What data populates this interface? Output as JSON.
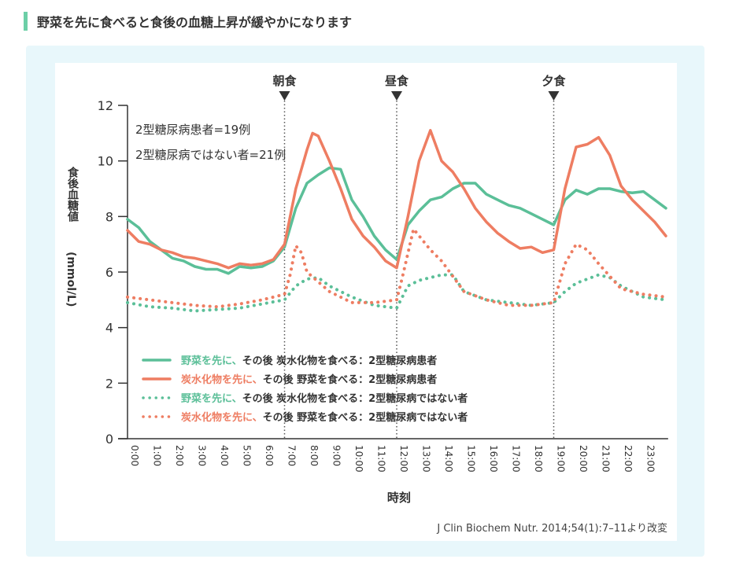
{
  "header": {
    "title": "野菜を先に食べると食後の血糖上昇が緩やかになります"
  },
  "annotation": {
    "line1": "2型糖尿病患者=19例",
    "line2": "2型糖尿病ではない者=21例"
  },
  "meals": [
    {
      "label": "朝食",
      "hour": 7
    },
    {
      "label": "昼食",
      "hour": 12
    },
    {
      "label": "夕食",
      "hour": 19
    }
  ],
  "source": "J Clin Biochem Nutr. 2014;54(1):7–11より改変",
  "chart_data": {
    "type": "line",
    "xlabel": "時刻",
    "ylabel": "食後血糖値",
    "yunit": "(mmol/L)",
    "ylim": [
      0,
      12
    ],
    "yticks": [
      0,
      2,
      4,
      6,
      8,
      10,
      12
    ],
    "xlim": [
      0,
      24.1
    ],
    "xticks": [
      "0:00",
      "1:00",
      "2:00",
      "3:00",
      "4:00",
      "5:00",
      "6:00",
      "7:00",
      "8:00",
      "9:00",
      "10:00",
      "11:00",
      "12:00",
      "13:00",
      "14:00",
      "15:00",
      "16:00",
      "17:00",
      "18:00",
      "19:00",
      "20:00",
      "21:00",
      "22:00",
      "23:00"
    ],
    "legend_position": "bottom-left",
    "series": [
      {
        "name_colored": "野菜を先に、",
        "name_rest": "その後 炭水化物を食べる：2型糖尿病患者",
        "color": "#5bbf98",
        "style": "solid",
        "x": [
          0,
          0.5,
          1,
          1.5,
          2,
          2.5,
          3,
          3.5,
          4,
          4.5,
          5,
          5.5,
          6,
          6.5,
          7,
          7.5,
          8,
          8.5,
          9,
          9.5,
          10,
          10.5,
          11,
          11.5,
          12,
          12.5,
          13,
          13.5,
          14,
          14.5,
          15,
          15.5,
          16,
          16.5,
          17,
          17.5,
          18,
          18.5,
          19,
          19.5,
          20,
          20.5,
          21,
          21.5,
          22,
          22.5,
          23,
          23.5,
          24
        ],
        "y": [
          7.9,
          7.6,
          7.1,
          6.8,
          6.5,
          6.4,
          6.2,
          6.1,
          6.1,
          5.95,
          6.2,
          6.15,
          6.2,
          6.4,
          6.9,
          8.3,
          9.2,
          9.5,
          9.75,
          9.7,
          8.6,
          8.0,
          7.3,
          6.8,
          6.45,
          7.7,
          8.2,
          8.6,
          8.7,
          9.0,
          9.2,
          9.2,
          8.8,
          8.6,
          8.4,
          8.3,
          8.1,
          7.9,
          7.7,
          8.6,
          8.95,
          8.8,
          9.0,
          9.0,
          8.9,
          8.85,
          8.9,
          8.6,
          8.3
        ]
      },
      {
        "name_colored": "炭水化物を先に、",
        "name_rest": "その後 野菜を食べる：2型糖尿病患者",
        "color": "#ee7d62",
        "style": "solid",
        "x": [
          0,
          0.5,
          1,
          1.5,
          2,
          2.5,
          3,
          3.5,
          4,
          4.5,
          5,
          5.5,
          6,
          6.5,
          7,
          7.5,
          8,
          8.25,
          8.5,
          9,
          9.5,
          10,
          10.5,
          11,
          11.5,
          12,
          12.5,
          13,
          13.5,
          14,
          14.5,
          15,
          15.5,
          16,
          16.5,
          17,
          17.5,
          18,
          18.5,
          19,
          19.5,
          20,
          20.5,
          21,
          21.5,
          22,
          22.5,
          23,
          23.5,
          24
        ],
        "y": [
          7.5,
          7.1,
          7.0,
          6.8,
          6.7,
          6.55,
          6.5,
          6.4,
          6.3,
          6.15,
          6.3,
          6.25,
          6.3,
          6.45,
          7.0,
          9.0,
          10.4,
          11.0,
          10.9,
          10.0,
          9.0,
          7.9,
          7.3,
          6.9,
          6.4,
          6.15,
          8.0,
          10.0,
          11.1,
          10.0,
          9.6,
          9.0,
          8.3,
          7.8,
          7.4,
          7.1,
          6.85,
          6.9,
          6.7,
          6.8,
          9.0,
          10.5,
          10.6,
          10.85,
          10.2,
          9.1,
          8.6,
          8.2,
          7.8,
          7.3
        ]
      },
      {
        "name_colored": "野菜を先に、",
        "name_rest": "その後 炭水化物を食べる：2型糖尿病ではない者",
        "color": "#5bbf98",
        "style": "dotted",
        "x": [
          0,
          1,
          2,
          3,
          4,
          5,
          6,
          7,
          7.5,
          8,
          8.5,
          9,
          10,
          11,
          12,
          12.5,
          13,
          14,
          14.5,
          15,
          16,
          17,
          18,
          19,
          19.5,
          20,
          21,
          21.5,
          22,
          23,
          24
        ],
        "y": [
          4.9,
          4.75,
          4.7,
          4.6,
          4.65,
          4.7,
          4.85,
          5.0,
          5.5,
          5.75,
          5.8,
          5.5,
          5.1,
          4.8,
          4.7,
          5.5,
          5.7,
          5.9,
          5.9,
          5.3,
          5.0,
          4.9,
          4.8,
          4.9,
          5.3,
          5.6,
          5.9,
          5.8,
          5.5,
          5.1,
          5.0
        ]
      },
      {
        "name_colored": "炭水化物を先に、",
        "name_rest": "その後 野菜を食べる：2型糖尿病ではない者",
        "color": "#ee7d62",
        "style": "dotted",
        "x": [
          0,
          1,
          2,
          3,
          4,
          5,
          6,
          7,
          7.25,
          7.5,
          7.75,
          8,
          9,
          10,
          11,
          12,
          12.25,
          12.75,
          13.5,
          14,
          15,
          16,
          17,
          18,
          19,
          19.5,
          20,
          20.5,
          21,
          22,
          23,
          24
        ],
        "y": [
          5.1,
          5.0,
          4.9,
          4.8,
          4.75,
          4.85,
          5.0,
          5.2,
          5.9,
          6.95,
          6.7,
          6.0,
          5.3,
          4.9,
          4.9,
          5.0,
          5.8,
          7.55,
          6.8,
          6.4,
          5.3,
          5.0,
          4.8,
          4.8,
          4.9,
          6.3,
          7.0,
          6.8,
          6.3,
          5.4,
          5.2,
          5.1
        ]
      }
    ]
  }
}
